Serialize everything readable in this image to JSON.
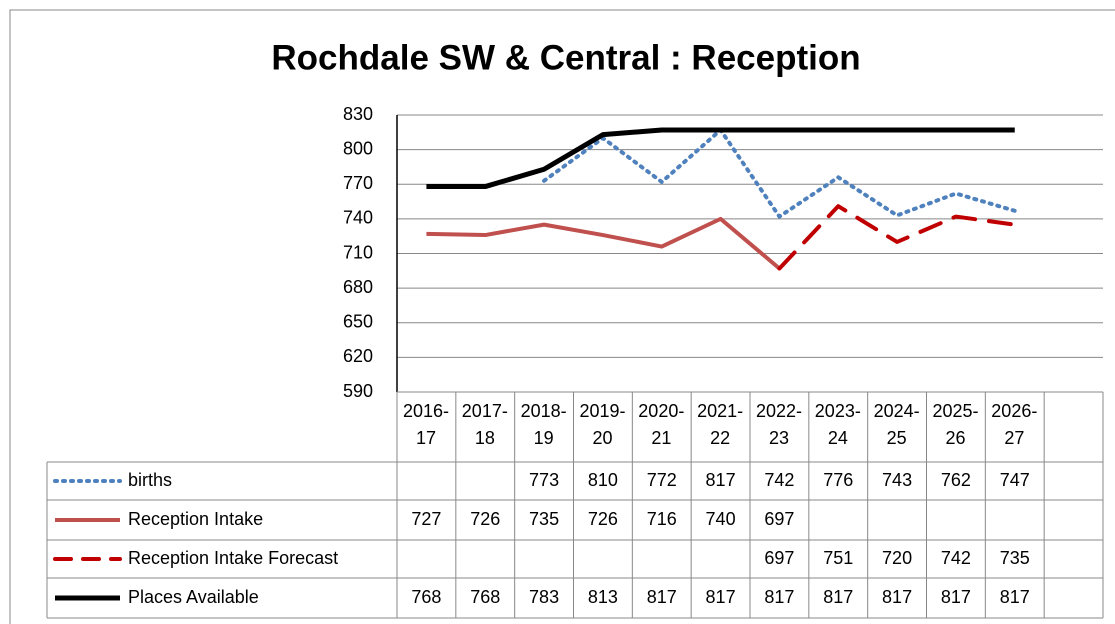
{
  "chart_data": {
    "type": "line",
    "title": "Rochdale SW & Central : Reception",
    "categories": [
      "2016-17",
      "2017-18",
      "2018-19",
      "2019-20",
      "2020-21",
      "2021-22",
      "2022-23",
      "2023-24",
      "2024-25",
      "2025-26",
      "2026-27",
      null
    ],
    "series": [
      {
        "name": "births",
        "color": "#4f81bd",
        "style": "dotted",
        "values": [
          null,
          null,
          773,
          810,
          772,
          817,
          742,
          776,
          743,
          762,
          747,
          null
        ]
      },
      {
        "name": "Reception Intake",
        "color": "#c0504d",
        "style": "solid",
        "values": [
          727,
          726,
          735,
          726,
          716,
          740,
          697,
          null,
          null,
          null,
          null,
          null
        ]
      },
      {
        "name": "Reception Intake Forecast",
        "color": "#c00000",
        "style": "dashed",
        "values": [
          null,
          null,
          null,
          null,
          null,
          null,
          697,
          751,
          720,
          742,
          735,
          null
        ]
      },
      {
        "name": "Places Available",
        "color": "#000000",
        "style": "solid-thick",
        "values": [
          768,
          768,
          783,
          813,
          817,
          817,
          817,
          817,
          817,
          817,
          817,
          null
        ]
      }
    ],
    "ylim": [
      590,
      830
    ],
    "yticks": [
      590,
      620,
      650,
      680,
      710,
      740,
      770,
      800,
      830
    ],
    "grid": true
  }
}
